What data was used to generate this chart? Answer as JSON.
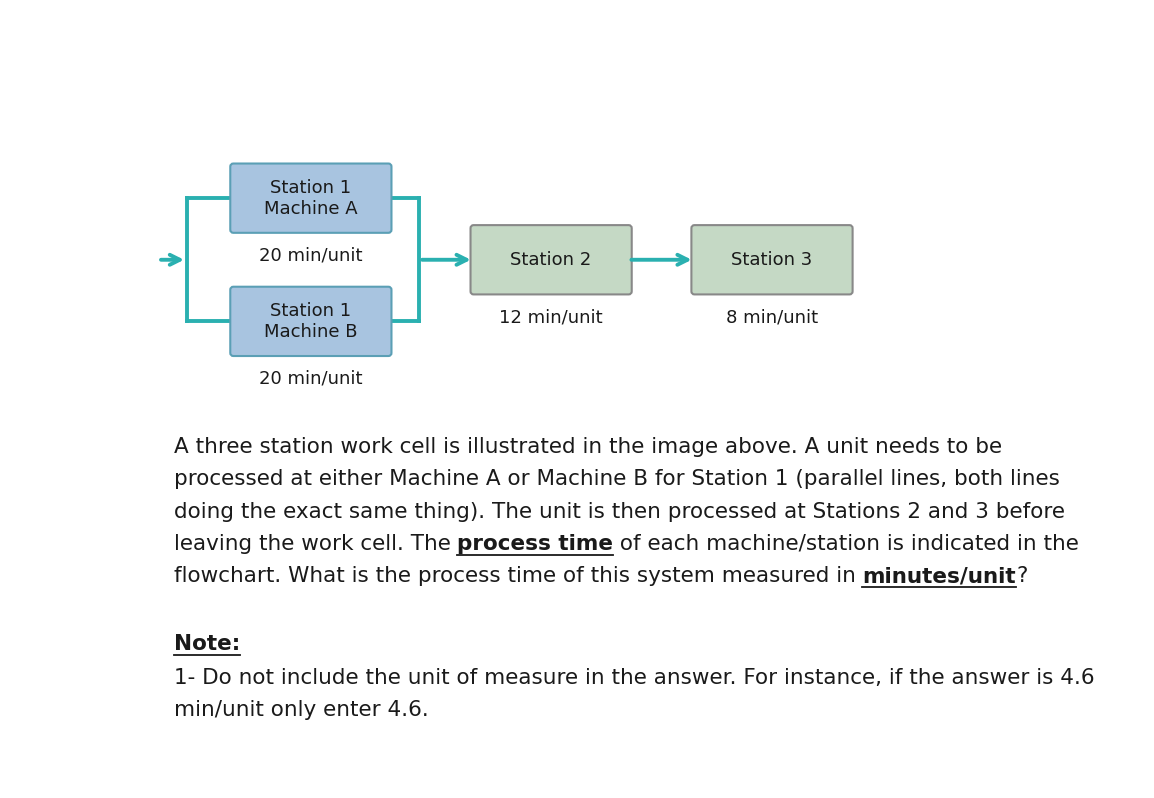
{
  "bg_color": "#ffffff",
  "box_blue_color": "#a8c4e0",
  "box_green_color": "#c5d9c5",
  "box_border_blue": "#5b9fb5",
  "box_border_green": "#888888",
  "arrow_color": "#2ab0b0",
  "text_color": "#1a1a1a",
  "station1A_label": "Station 1\nMachine A",
  "station1A_time": "20 min/unit",
  "station1B_label": "Station 1\nMachine B",
  "station1B_time": "20 min/unit",
  "station2_label": "Station 2",
  "station2_time": "12 min/unit",
  "station3_label": "Station 3",
  "station3_time": "8 min/unit",
  "note_label": "Note:",
  "diagram_fontsize": 13,
  "body_fontsize": 15.5
}
